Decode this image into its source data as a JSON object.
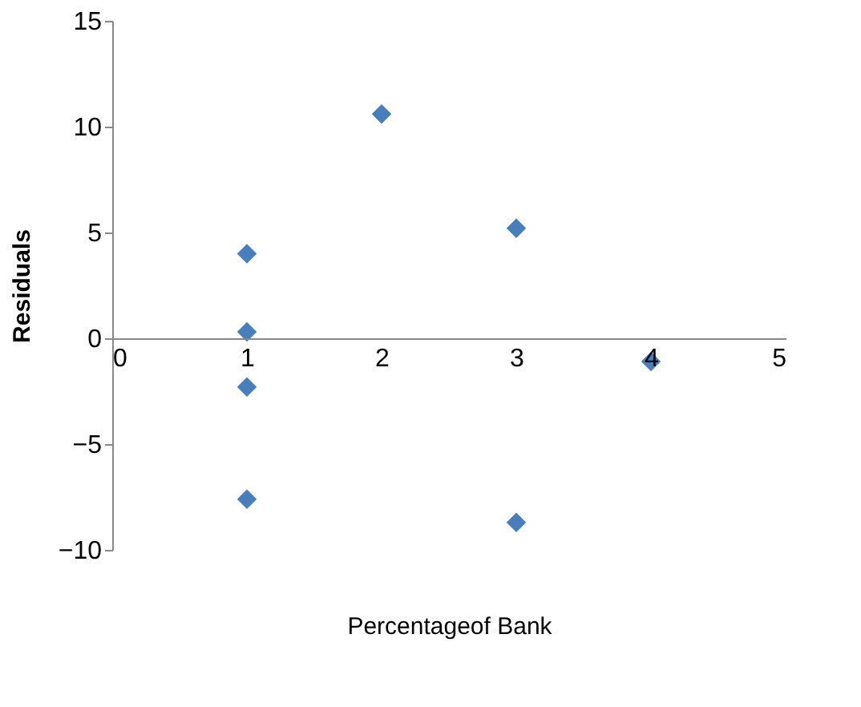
{
  "chart_data": {
    "type": "scatter",
    "xlabel": "Percentageof Bank",
    "ylabel": "Residuals",
    "x": [
      1,
      1,
      1,
      1,
      2,
      3,
      3,
      4
    ],
    "values": [
      4.0,
      0.3,
      -2.3,
      -7.6,
      10.6,
      5.2,
      -8.7,
      -1.1
    ],
    "color": "#4a7ebb",
    "marker": "diamond",
    "grid": false,
    "xlim": [
      0,
      5
    ],
    "xticks": [
      0,
      1,
      2,
      3,
      4,
      5
    ],
    "ylim": [
      -10,
      15
    ],
    "yticks": [
      -10,
      -5,
      0,
      5,
      10,
      15
    ]
  }
}
